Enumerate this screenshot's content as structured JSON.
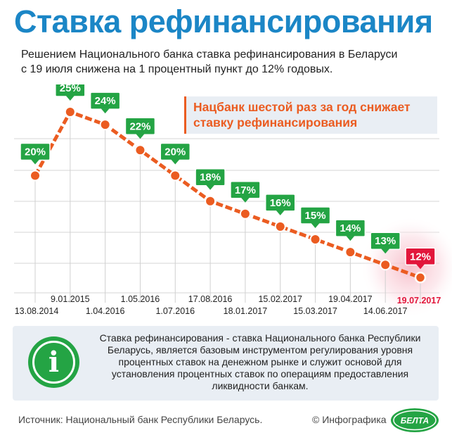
{
  "header": {
    "title": "Ставка рефинансирования",
    "subtitle_line1": "Решением Национального банка ставка рефинансирования в Беларуси",
    "subtitle_line2": "с 19 июля снижена на 1 процентный пункт до 12% годовых."
  },
  "callout": {
    "line1": "Нацбанк шестой раз за год снижает",
    "line2": "ставку рефинансирования"
  },
  "chart_data": {
    "type": "line",
    "x": [
      "13.08.2014",
      "9.01.2015",
      "1.04.2016",
      "1.05.2016",
      "1.07.2016",
      "17.08.2016",
      "18.01.2017",
      "15.02.2017",
      "15.03.2017",
      "19.04.2017",
      "14.06.2017",
      "19.07.2017"
    ],
    "values": [
      20,
      25,
      24,
      22,
      20,
      18,
      17,
      16,
      15,
      14,
      13,
      12
    ],
    "value_labels": [
      "20%",
      "25%",
      "24%",
      "22%",
      "20%",
      "18%",
      "17%",
      "16%",
      "15%",
      "14%",
      "13%",
      "12%"
    ],
    "highlight_index": 11,
    "grid": true
  },
  "colors": {
    "title_blue": "#1b86c6",
    "label_green": "#24a444",
    "line_orange": "#eb5c21",
    "highlight_red": "#e2163b",
    "grid_gray": "#d6d6d6"
  },
  "info": {
    "icon": "info-icon",
    "icon_glyph": "i",
    "line1": "Ставка рефинансирования - ставка Национального банка Республики",
    "line2": "Беларусь, является базовым инструментом регулирования уровня",
    "line3": "процентных ставок на денежном рынке и служит основой для",
    "line4": "установления процентных ставок по операциям предоставления",
    "line5": "ликвидности банкам."
  },
  "footer": {
    "source": "Источник: Национальный банк Республики Беларусь.",
    "credit": "© Инфографика",
    "logo_text": "БЕЛТА"
  }
}
